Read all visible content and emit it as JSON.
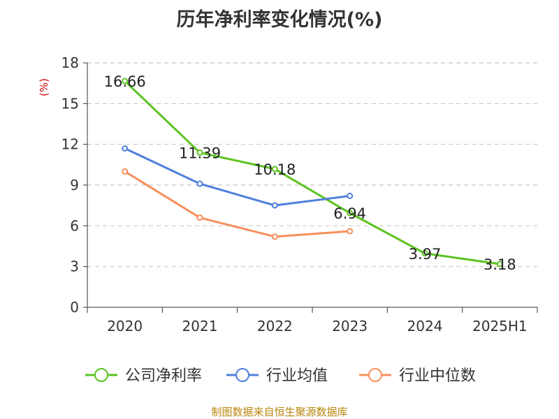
{
  "chart_data": {
    "type": "line",
    "title": "历年净利率变化情况(%)",
    "ylabel": "(%)",
    "xlabel": "",
    "categories": [
      "2020",
      "2021",
      "2022",
      "2023",
      "2024",
      "2025H1"
    ],
    "ylim": [
      0,
      18
    ],
    "yticks": [
      0,
      3,
      6,
      9,
      12,
      15,
      18
    ],
    "grid": true,
    "legend_position": "bottom",
    "series": [
      {
        "name": "公司净利率",
        "color": "#5cc320",
        "values": [
          16.66,
          11.39,
          10.18,
          6.94,
          3.97,
          3.18
        ],
        "show_labels": true
      },
      {
        "name": "行业均值",
        "color": "#4e7fdc",
        "values": [
          11.7,
          9.1,
          7.5,
          8.2,
          null,
          null
        ],
        "show_labels": false
      },
      {
        "name": "行业中位数",
        "color": "#f78f5b",
        "values": [
          10.0,
          6.6,
          5.2,
          5.6,
          null,
          null
        ],
        "show_labels": false
      }
    ]
  },
  "footer": {
    "source": "制图数据来自恒生聚源数据库"
  }
}
